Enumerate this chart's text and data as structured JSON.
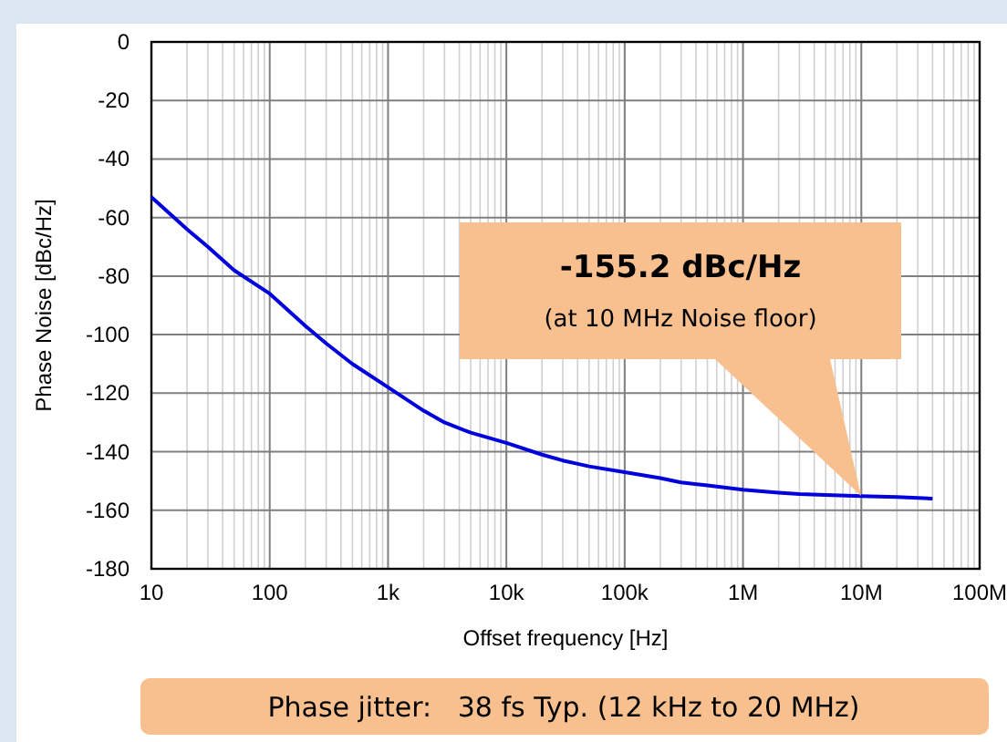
{
  "chart_data": {
    "type": "line",
    "xlabel": "Offset frequency [Hz]",
    "ylabel": "Phase Noise [dBc/Hz]",
    "log": "x",
    "grid": true,
    "line_style": "solid",
    "x": [
      10,
      20,
      30,
      50,
      100,
      200,
      300,
      500,
      1000,
      2000,
      3000,
      5000,
      10000,
      20000,
      30000,
      50000,
      100000,
      200000,
      300000,
      500000,
      1000000,
      2000000,
      3000000,
      5000000,
      10000000,
      20000000,
      40000000
    ],
    "series": [
      {
        "color": "#0000dd",
        "values": [
          -53,
          -64,
          -70,
          -78,
          -86,
          -97,
          -103,
          -110,
          -118,
          -126,
          -130,
          -133.5,
          -137,
          -141,
          -143,
          -145,
          -147,
          -149,
          -150.5,
          -151.5,
          -153,
          -154,
          -154.5,
          -154.8,
          -155.2,
          -155.5,
          -156
        ]
      }
    ],
    "xlim": [
      10,
      100000000
    ],
    "xticks": [
      {
        "value": 10,
        "label": "10"
      },
      {
        "value": 100,
        "label": "100"
      },
      {
        "value": 1000,
        "label": "1k"
      },
      {
        "value": 10000,
        "label": "10k"
      },
      {
        "value": 100000,
        "label": "100k"
      },
      {
        "value": 1000000,
        "label": "1M"
      },
      {
        "value": 10000000,
        "label": "10M"
      },
      {
        "value": 100000000,
        "label": "100M"
      }
    ],
    "ylim": [
      -180,
      0
    ],
    "yticks": [
      -180,
      -160,
      -140,
      -120,
      -100,
      -80,
      -60,
      -40,
      -20,
      0
    ],
    "annotations": [
      "-155.2 dBc/Hz",
      "(at 10 MHz Noise floor)",
      "Phase jitter:   38 fs Typ. (12 kHz to 20 MHz)"
    ]
  }
}
